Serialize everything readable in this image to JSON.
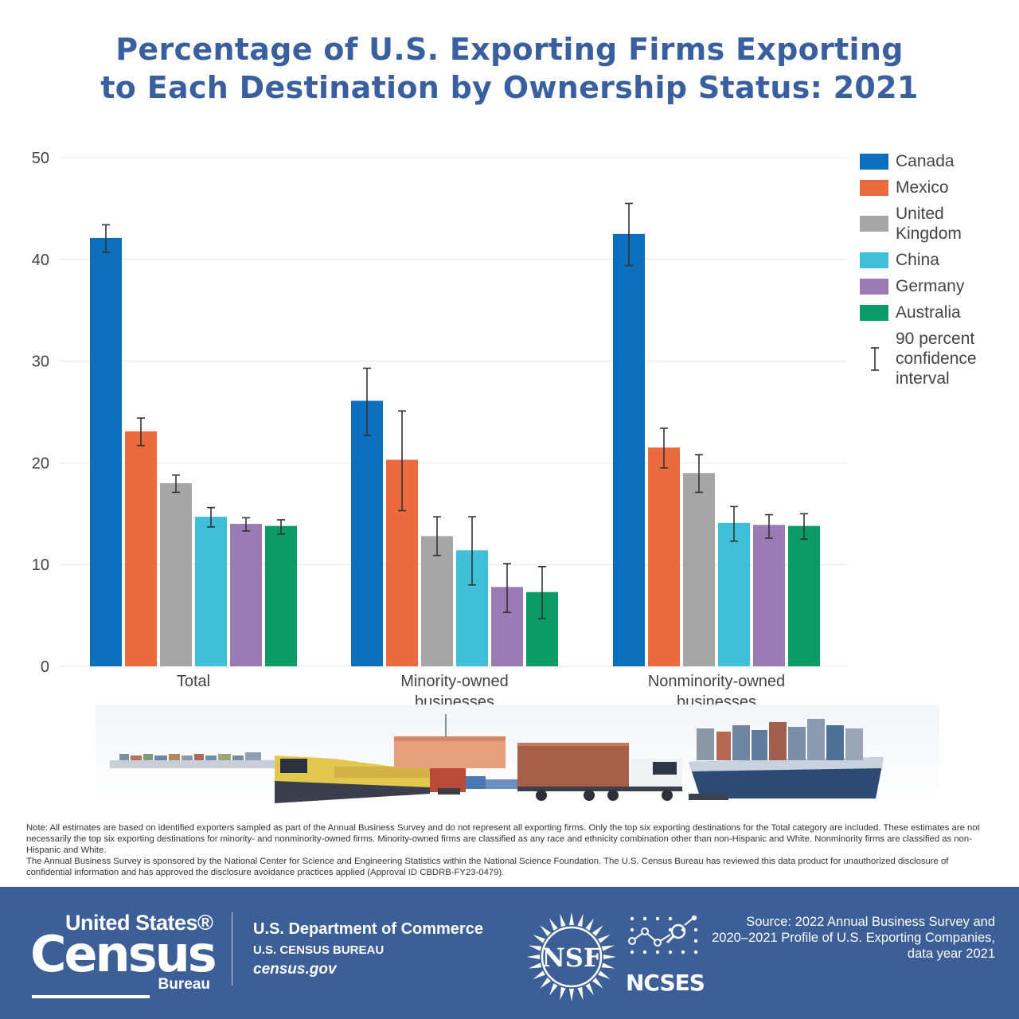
{
  "title": {
    "line1": "Percentage of U.S. Exporting Firms Exporting",
    "line2": "to Each Destination by Ownership Status: 2021"
  },
  "chart_data": {
    "type": "bar",
    "title": "Percentage of U.S. Exporting Firms Exporting to Each Destination by Ownership Status: 2021",
    "xlabel": "",
    "ylabel": "",
    "ylim": [
      0,
      50
    ],
    "yticks": [
      "0",
      "10",
      "20",
      "30",
      "40",
      "50"
    ],
    "grid": true,
    "legend_position": "right",
    "categories": [
      {
        "line1": "Total",
        "line2": ""
      },
      {
        "line1": "Minority-owned",
        "line2": "businesses"
      },
      {
        "line1": "Nonminority-owned",
        "line2": "businesses"
      }
    ],
    "series": [
      {
        "name": "Canada",
        "color": "#0b6fbd",
        "values": [
          42.1,
          26.1,
          42.5
        ],
        "ci_low": [
          40.7,
          22.7,
          39.4
        ],
        "ci_high": [
          43.4,
          29.3,
          45.5
        ]
      },
      {
        "name": "Mexico",
        "color": "#ec6a3f",
        "values": [
          23.1,
          20.3,
          21.5
        ],
        "ci_low": [
          21.7,
          15.3,
          19.5
        ],
        "ci_high": [
          24.4,
          25.1,
          23.4
        ]
      },
      {
        "name": "United Kingdom",
        "color": "#a6a6a6",
        "values": [
          18.0,
          12.8,
          19.0
        ],
        "ci_low": [
          17.1,
          10.9,
          17.1
        ],
        "ci_high": [
          18.8,
          14.7,
          20.8
        ]
      },
      {
        "name": "China",
        "color": "#40bfd8",
        "values": [
          14.7,
          11.4,
          14.1
        ],
        "ci_low": [
          13.7,
          8.0,
          12.3
        ],
        "ci_high": [
          15.6,
          14.7,
          15.7
        ]
      },
      {
        "name": "Germany",
        "color": "#9a7bb6",
        "values": [
          14.0,
          7.8,
          13.9
        ],
        "ci_low": [
          13.3,
          5.3,
          12.6
        ],
        "ci_high": [
          14.6,
          10.1,
          14.9
        ]
      },
      {
        "name": "Australia",
        "color": "#0c9a67",
        "values": [
          13.8,
          7.3,
          13.8
        ],
        "ci_low": [
          13.0,
          4.7,
          12.5
        ],
        "ci_high": [
          14.4,
          9.8,
          15.0
        ]
      }
    ]
  },
  "legend": {
    "items": [
      {
        "label": "Canada",
        "color": "#0b6fbd"
      },
      {
        "label": "Mexico",
        "color": "#ec6a3f"
      },
      {
        "label": "United Kingdom",
        "color": "#a6a6a6"
      },
      {
        "label": "China",
        "color": "#40bfd8"
      },
      {
        "label": "Germany",
        "color": "#9a7bb6"
      },
      {
        "label": "Australia",
        "color": "#0c9a67"
      }
    ],
    "ci_label": "90 percent confidence interval"
  },
  "note": {
    "paragraph1": "Note: All estimates are based on identified exporters sampled as part of the Annual Business Survey and do not represent all exporting firms. Only the top six exporting destinations for the Total category are included. These estimates are not necessarily the top six exporting destinations for minority- and nonminority-owned firms. Minority-owned firms are classified as any race and ethnicity combination other than non-Hispanic and White. Nonminority firms are classified as non-Hispanic and White.",
    "paragraph2": "The Annual Business Survey is sponsored by the National Center for Science and Engineering Statistics within the National Science Foundation. The U.S. Census Bureau has reviewed this data product for unauthorized disclosure of confidential information and has approved the disclosure avoidance practices applied (Approval ID CBDRB-FY23-0479)."
  },
  "footer": {
    "census_top": "United States®",
    "census_main": "Census",
    "census_bureau": "Bureau",
    "dept_line1": "U.S. Department of Commerce",
    "dept_line2": "U.S. CENSUS BUREAU",
    "dept_line3": "census.gov",
    "nsf_text": "NSF",
    "ncses_text": "NCSES",
    "source_text": "Source: 2022 Annual Business Survey and 2020–2021 Profile of U.S. Exporting Companies, data year 2021",
    "bg_color": "#3b5f96"
  }
}
